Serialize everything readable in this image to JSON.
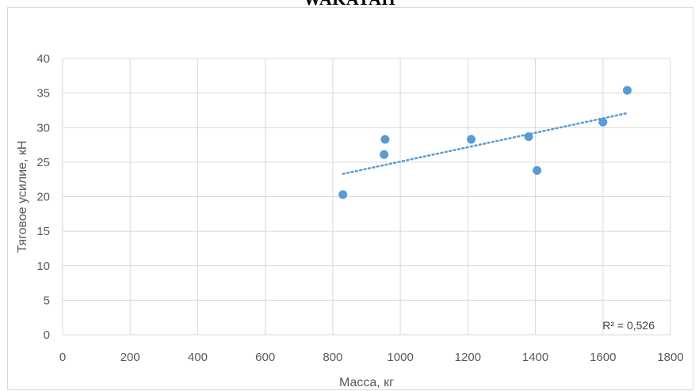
{
  "page": {
    "top_title": "WAKATAH"
  },
  "chart_data": {
    "type": "scatter",
    "title": "",
    "xlabel": "Масса, кг",
    "ylabel": "Тяговое усилие, кН",
    "xlim": [
      0,
      1800
    ],
    "ylim": [
      0,
      40
    ],
    "x_ticks": [
      0,
      200,
      400,
      600,
      800,
      1000,
      1200,
      1400,
      1600,
      1800
    ],
    "y_ticks": [
      0,
      5,
      10,
      15,
      20,
      25,
      30,
      35,
      40
    ],
    "grid": true,
    "series": [
      {
        "points": [
          {
            "x": 830,
            "y": 20.3
          },
          {
            "x": 952,
            "y": 26.1
          },
          {
            "x": 955,
            "y": 28.3
          },
          {
            "x": 1210,
            "y": 28.3
          },
          {
            "x": 1380,
            "y": 28.7
          },
          {
            "x": 1405,
            "y": 23.8
          },
          {
            "x": 1600,
            "y": 30.8
          },
          {
            "x": 1672,
            "y": 35.4
          }
        ],
        "color": "#5b9bd5"
      }
    ],
    "trendline": {
      "type": "linear",
      "x_start": 830,
      "y_start": 23.3,
      "x_end": 1672,
      "y_end": 32.1,
      "color": "#5b9bd5",
      "label": "R² = 0,526"
    }
  }
}
